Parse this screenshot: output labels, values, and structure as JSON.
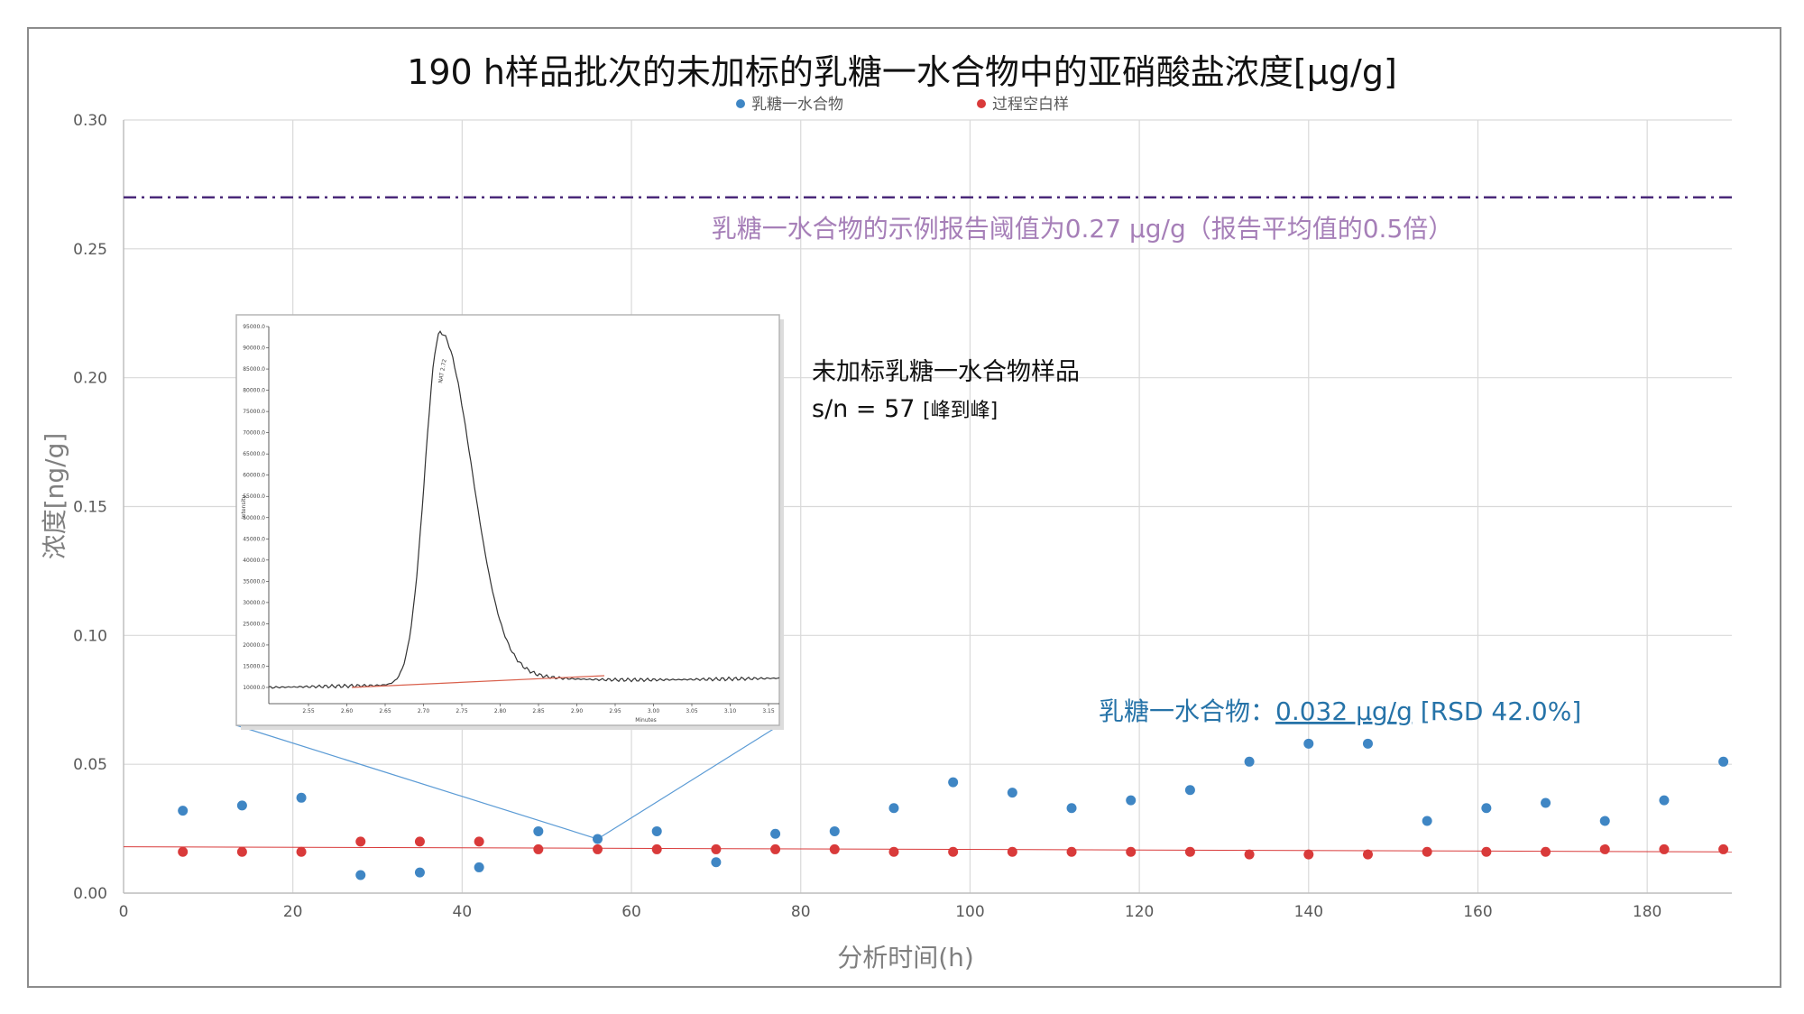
{
  "chart_data": {
    "type": "scatter",
    "title": "190 h样品批次的未加标的乳糖一水合物中的亚硝酸盐浓度[μg/g]",
    "xlabel": "分析时间(h)",
    "ylabel": "浓度[ng/g]",
    "xlim": [
      0,
      190
    ],
    "ylim": [
      0,
      0.3
    ],
    "x_ticks": [
      0,
      20,
      40,
      60,
      80,
      100,
      120,
      140,
      160,
      180
    ],
    "y_ticks": [
      "0.00",
      "0.05",
      "0.10",
      "0.15",
      "0.20",
      "0.25",
      "0.30"
    ],
    "grid": true,
    "legend_position": "top",
    "series": [
      {
        "name": "乳糖一水合物",
        "color": "#3f86c4",
        "x": [
          7,
          14,
          21,
          28,
          35,
          42,
          49,
          56,
          63,
          70,
          77,
          84,
          91,
          98,
          105,
          112,
          119,
          126,
          133,
          140,
          147,
          154,
          161,
          168,
          175,
          182,
          189
        ],
        "y": [
          0.032,
          0.034,
          0.037,
          0.007,
          0.008,
          0.01,
          0.024,
          0.021,
          0.024,
          0.012,
          0.023,
          0.024,
          0.033,
          0.043,
          0.039,
          0.033,
          0.036,
          0.04,
          0.051,
          0.058,
          0.058,
          0.028,
          0.033,
          0.035,
          0.028,
          0.036,
          0.051
        ]
      },
      {
        "name": "过程空白样",
        "color": "#d93a3a",
        "x": [
          7,
          14,
          21,
          28,
          35,
          42,
          49,
          56,
          63,
          70,
          77,
          84,
          91,
          98,
          105,
          112,
          119,
          126,
          133,
          140,
          147,
          154,
          161,
          168,
          175,
          182,
          189
        ],
        "y": [
          0.016,
          0.016,
          0.016,
          0.02,
          0.02,
          0.02,
          0.017,
          0.017,
          0.017,
          0.017,
          0.017,
          0.017,
          0.016,
          0.016,
          0.016,
          0.016,
          0.016,
          0.016,
          0.015,
          0.015,
          0.015,
          0.016,
          0.016,
          0.016,
          0.017,
          0.017,
          0.017
        ]
      }
    ],
    "trendline": {
      "color": "#d93a3a",
      "y_start": 0.018,
      "y_end": 0.016
    },
    "threshold": {
      "value": 0.27,
      "color": "#4b2a7a",
      "label": "乳糖一水合物的示例报告阈值为0.27 μg/g（报告平均值的0.5倍）"
    },
    "summary": {
      "prefix": "乳糖一水合物：",
      "value": "0.032 μg/g",
      "suffix": " [RSD 42.0%]"
    },
    "inset_note": {
      "line1": "未加标乳糖一水合物样品",
      "line2_main": "s/n = 57 ",
      "line2_small": "[峰到峰]"
    },
    "inset": {
      "source_point": {
        "x": 56,
        "y": 0.021
      },
      "peak_label": "NAT 2.72",
      "ylabel": "Intensity",
      "xlabel": "Minutes",
      "x_ticks": [
        "2.55",
        "2.60",
        "2.65",
        "2.70",
        "2.75",
        "2.80",
        "2.85",
        "2.90",
        "2.95",
        "3.00",
        "3.05",
        "3.10",
        "3.15"
      ],
      "y_ticks": [
        "95000.0",
        "90000.0",
        "85000.0",
        "80000.0",
        "75000.0",
        "70000.0",
        "65000.0",
        "60000.0",
        "55000.0",
        "50000.0",
        "45000.0",
        "40000.0",
        "35000.0",
        "30000.0",
        "25000.0",
        "20000.0",
        "15000.0",
        "10000.0"
      ]
    }
  }
}
